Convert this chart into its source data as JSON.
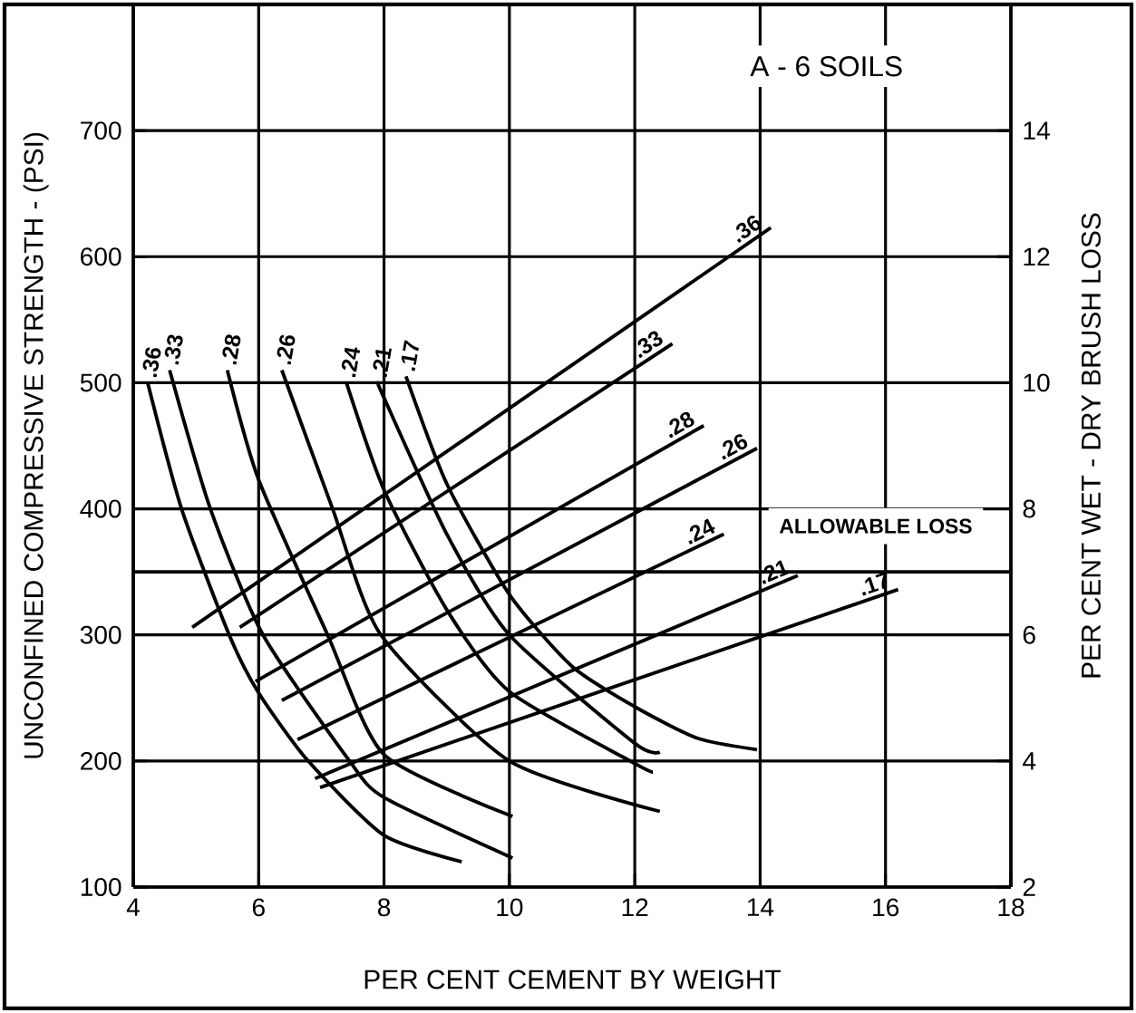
{
  "chart_data": {
    "type": "line",
    "title": "A - 6  SOILS",
    "xlabel": "PER CENT CEMENT BY WEIGHT",
    "ylabel": "UNCONFINED COMPRESSIVE STRENGTH - (PSI)",
    "y2label": "PER CENT WET - DRY BRUSH LOSS",
    "xlim": [
      4,
      18
    ],
    "xticks": [
      4,
      6,
      8,
      10,
      12,
      14,
      16,
      18
    ],
    "ylim": [
      100,
      800
    ],
    "yticks": [
      100,
      200,
      300,
      400,
      500,
      600,
      700
    ],
    "y2lim": [
      2,
      16
    ],
    "y2ticks": [
      2,
      4,
      6,
      8,
      10,
      12,
      14
    ],
    "grid": true,
    "marker": "none",
    "line_style": "solid",
    "ref_lines": [
      {
        "axis": "y2",
        "value": 7,
        "label": "ALLOWABLE LOSS"
      }
    ],
    "series": [
      {
        "name": ".36",
        "color": "#000000",
        "x": [
          4.94,
          14.17
        ],
        "values": [
          306,
          623
        ]
      },
      {
        "name": ".33",
        "color": "#000000",
        "x": [
          5.7,
          12.6
        ],
        "values": [
          306,
          531
        ]
      },
      {
        "name": ".28",
        "color": "#000000",
        "x": [
          5.95,
          13.1
        ],
        "values": [
          263,
          466
        ]
      },
      {
        "name": ".26",
        "color": "#000000",
        "x": [
          6.37,
          13.95
        ],
        "values": [
          248,
          448
        ]
      },
      {
        "name": ".24",
        "color": "#000000",
        "x": [
          6.62,
          13.42
        ],
        "values": [
          217,
          380
        ]
      },
      {
        "name": ".21",
        "color": "#000000",
        "x": [
          6.9,
          14.6
        ],
        "values": [
          186,
          347
        ]
      },
      {
        "name": ".17",
        "color": "#000000",
        "x": [
          6.98,
          16.2
        ],
        "values": [
          179,
          336
        ]
      },
      {
        "name": ".36",
        "color": "#000000",
        "axis": "y2",
        "x": [
          4.23,
          4.77,
          5.53,
          6,
          6.79,
          8,
          9.24
        ],
        "values": [
          10,
          8,
          6,
          5.08,
          4,
          2.82,
          2.4
        ]
      },
      {
        "name": ".33",
        "color": "#000000",
        "axis": "y2",
        "x": [
          4.58,
          5.23,
          6.07,
          7.45,
          8,
          10.05
        ],
        "values": [
          10.2,
          8,
          6,
          4,
          3.42,
          2.46
        ]
      },
      {
        "name": ".28",
        "color": "#000000",
        "axis": "y2",
        "x": [
          5.5,
          6,
          7.1,
          8,
          10.05
        ],
        "values": [
          10.2,
          8.46,
          6,
          4.1,
          3.12
        ]
      },
      {
        "name": ".26",
        "color": "#000000",
        "axis": "y2",
        "x": [
          6.37,
          7.18,
          7.95,
          10,
          12.4
        ],
        "values": [
          10.2,
          8,
          6,
          4,
          3.2
        ]
      },
      {
        "name": ".24",
        "color": "#000000",
        "axis": "y2",
        "x": [
          7.4,
          8,
          9,
          10,
          12,
          12.29
        ],
        "values": [
          10,
          8.3,
          6.4,
          5.1,
          3.96,
          3.82
        ]
      },
      {
        "name": ".21",
        "color": "#000000",
        "axis": "y2",
        "x": [
          7.9,
          8,
          9,
          10,
          12,
          12.4
        ],
        "values": [
          10,
          9.76,
          7.6,
          6,
          4.28,
          4.14
        ]
      },
      {
        "name": ".17",
        "color": "#000000",
        "axis": "y2",
        "x": [
          8.35,
          9,
          10,
          11,
          12,
          13,
          13.95
        ],
        "values": [
          10.1,
          8.4,
          6.64,
          5.5,
          4.86,
          4.36,
          4.18
        ]
      }
    ]
  }
}
